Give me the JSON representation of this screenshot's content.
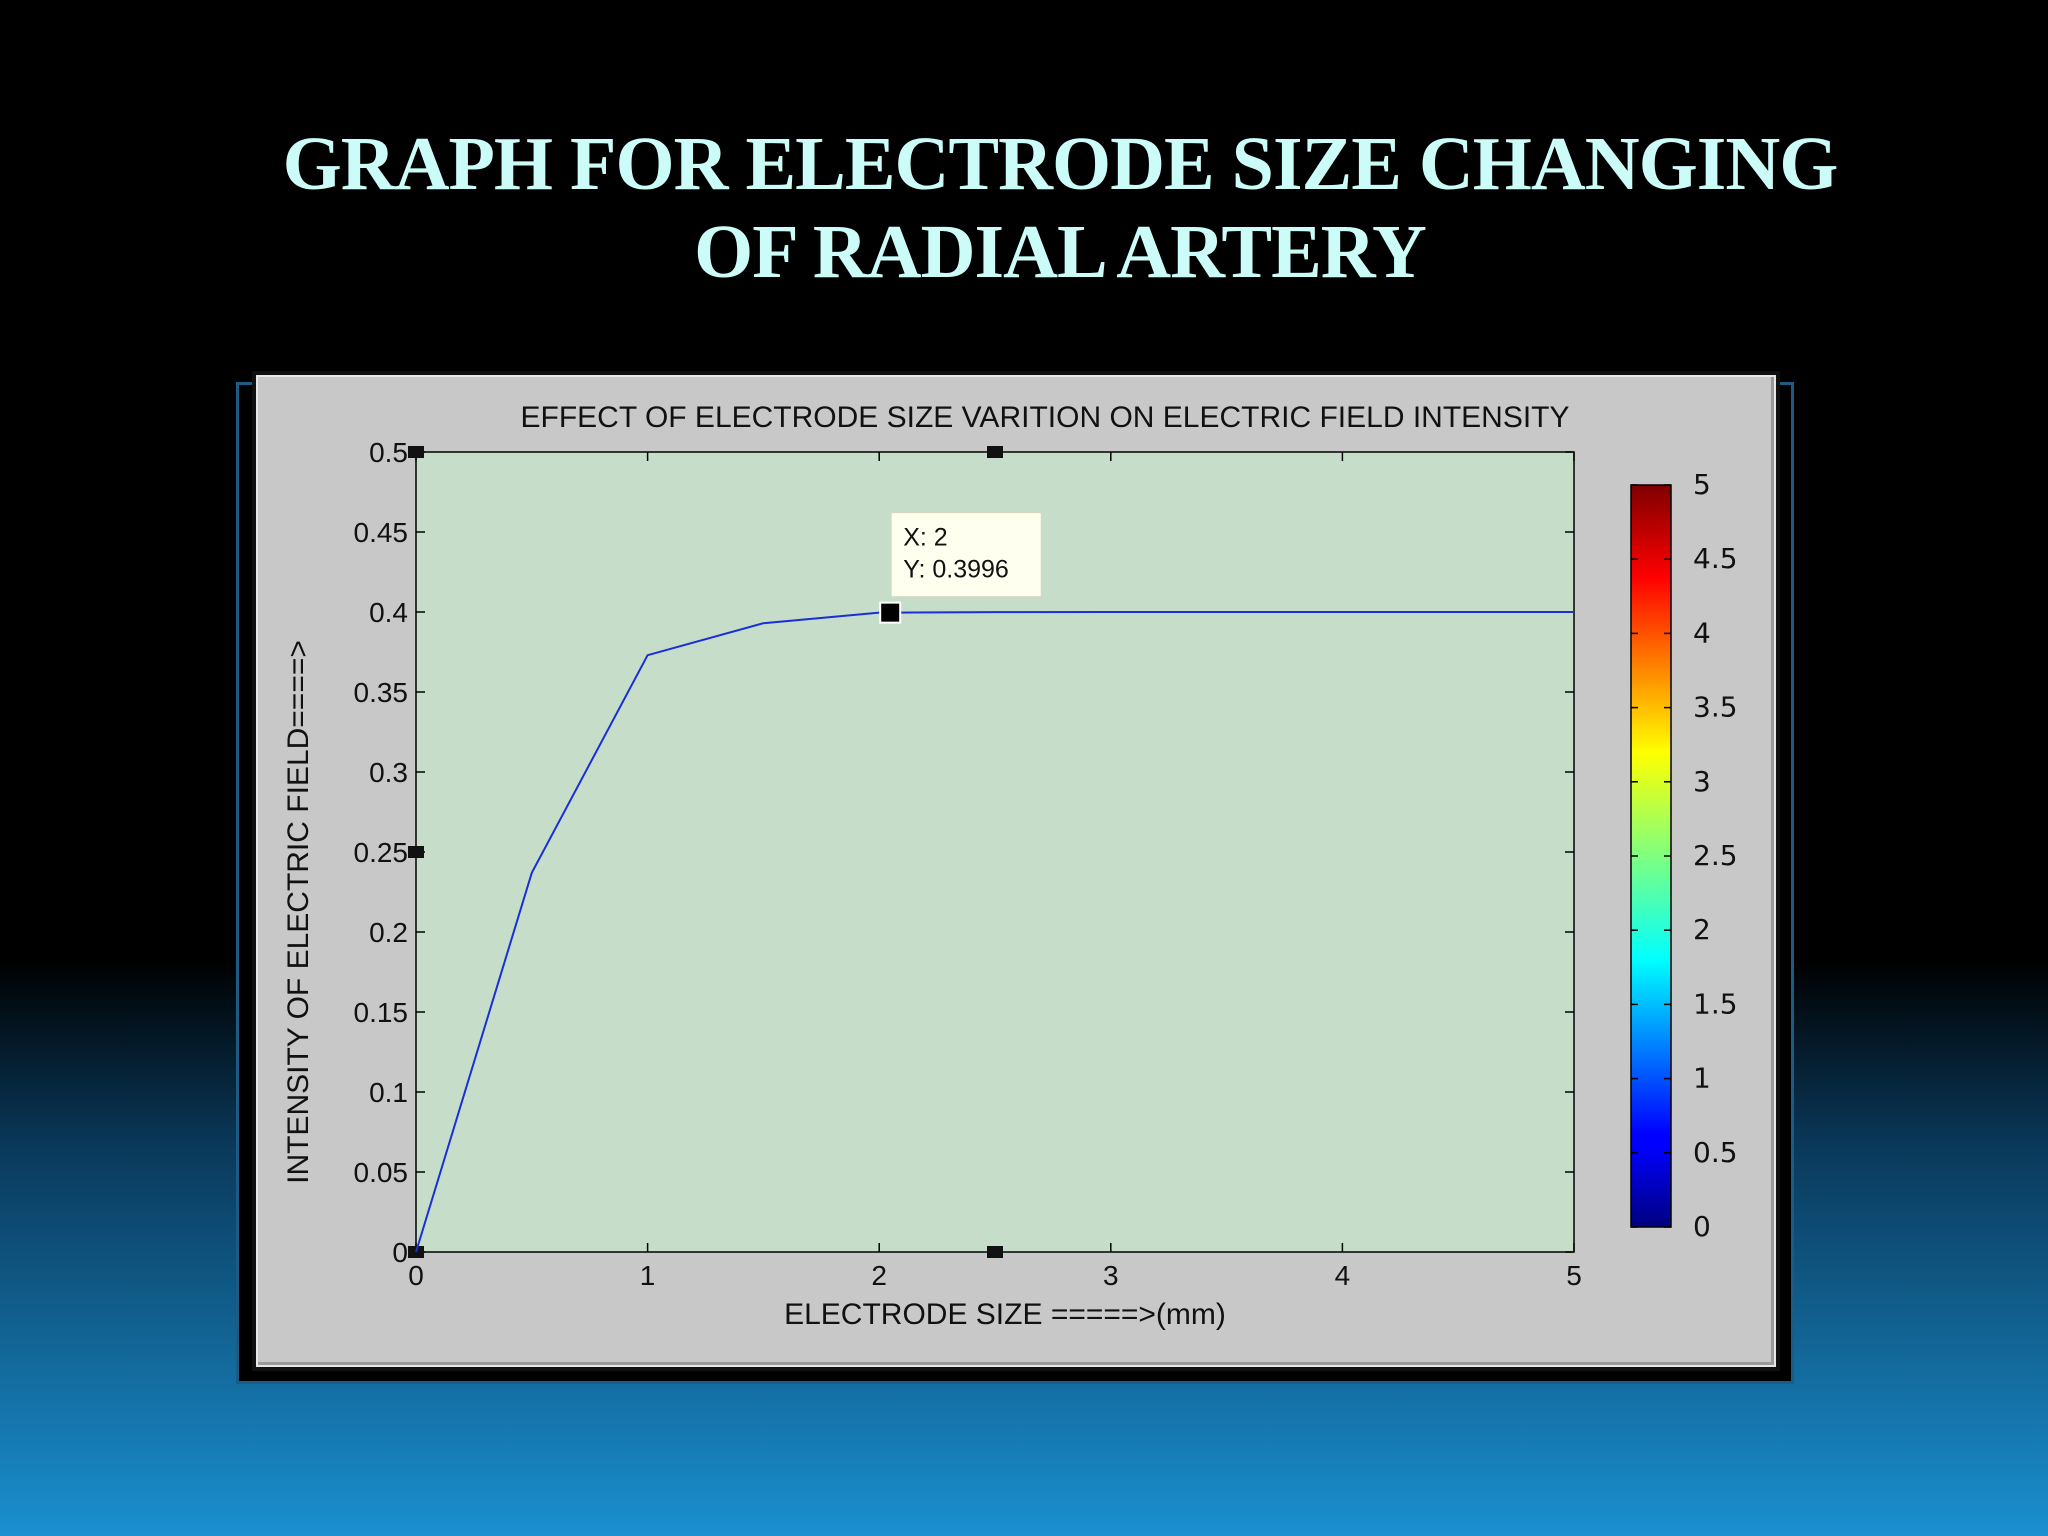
{
  "slide": {
    "title_line1": "GRAPH  FOR  ELECTRODE SIZE CHANGING",
    "title_line2": "OF RADIAL  ARTERY"
  },
  "colors": {
    "title": "#ccfcf8",
    "plot_bg": "#c6dec9",
    "line": "#1a2fd6",
    "figure_bg": "#c8c8c8"
  },
  "chart_data": {
    "type": "line",
    "title": "EFFECT OF ELECTRODE SIZE VARITION ON ELECTRIC FIELD INTENSITY",
    "xlabel": "ELECTRODE SIZE =====>(mm)",
    "ylabel": "INTENSITY OF ELECTRIC FIELD====>",
    "xlim": [
      0,
      5
    ],
    "ylim": [
      0,
      0.5
    ],
    "xticks": [
      "0",
      "1",
      "2",
      "3",
      "4",
      "5"
    ],
    "yticks": [
      "0",
      "0.05",
      "0.1",
      "0.15",
      "0.2",
      "0.25",
      "0.3",
      "0.35",
      "0.4",
      "0.45",
      "0.5"
    ],
    "grid": false,
    "series": [
      {
        "x": [
          0,
          0.5,
          1,
          1.5,
          2,
          2.5,
          3,
          3.5,
          4,
          4.5,
          5
        ],
        "y": [
          0,
          0.237,
          0.373,
          0.393,
          0.3996,
          0.3999,
          0.4,
          0.4,
          0.4,
          0.4,
          0.4
        ]
      }
    ],
    "datatip": {
      "x_label": "X: 2",
      "y_label": "Y: 0.3996",
      "x": 2,
      "y": 0.3996
    },
    "colorbar": {
      "ticks": [
        "5",
        "4.5",
        "4",
        "3.5",
        "3",
        "2.5",
        "2",
        "1.5",
        "1",
        "0.5",
        "0"
      ],
      "range": [
        0,
        5
      ],
      "colormap": "jet"
    }
  }
}
